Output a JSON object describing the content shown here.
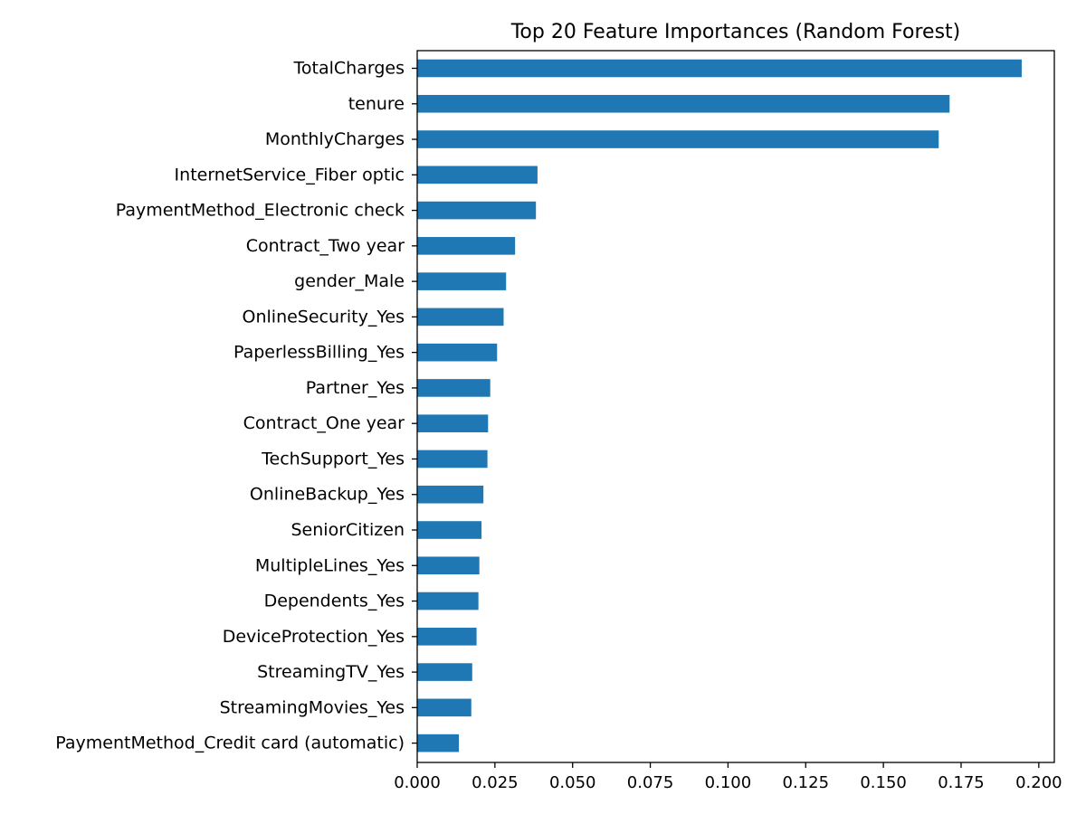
{
  "chart_data": {
    "type": "bar",
    "orientation": "horizontal",
    "title": "Top 20 Feature Importances (Random Forest)",
    "xlabel": "",
    "ylabel": "",
    "xlim": [
      0,
      0.205
    ],
    "xticks": [
      0.0,
      0.025,
      0.05,
      0.075,
      0.1,
      0.125,
      0.15,
      0.175,
      0.2
    ],
    "xtick_labels": [
      "0.000",
      "0.025",
      "0.050",
      "0.075",
      "0.100",
      "0.125",
      "0.150",
      "0.175",
      "0.200"
    ],
    "grid": false,
    "legend": "none",
    "bar_color": "#1f77b4",
    "categories": [
      "TotalCharges",
      "tenure",
      "MonthlyCharges",
      "InternetService_Fiber optic",
      "PaymentMethod_Electronic check",
      "Contract_Two year",
      "gender_Male",
      "OnlineSecurity_Yes",
      "PaperlessBilling_Yes",
      "Partner_Yes",
      "Contract_One year",
      "TechSupport_Yes",
      "OnlineBackup_Yes",
      "SeniorCitizen",
      "MultipleLines_Yes",
      "Dependents_Yes",
      "DeviceProtection_Yes",
      "StreamingTV_Yes",
      "StreamingMovies_Yes",
      "PaymentMethod_Credit card (automatic)"
    ],
    "values": [
      0.1945,
      0.1713,
      0.1678,
      0.0387,
      0.0382,
      0.0315,
      0.0286,
      0.0278,
      0.0257,
      0.0235,
      0.0228,
      0.0226,
      0.0213,
      0.0207,
      0.02,
      0.0197,
      0.0191,
      0.0177,
      0.0174,
      0.0134
    ]
  }
}
